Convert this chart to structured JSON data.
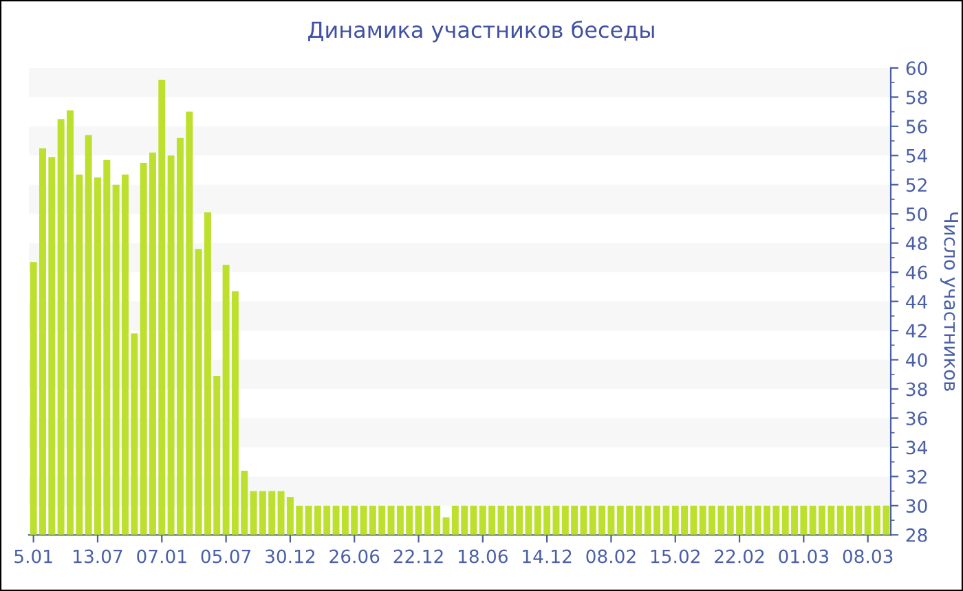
{
  "chart_data": {
    "type": "bar",
    "title": "Динамика участников беседы",
    "ylabel": "Число участников",
    "categories": [
      "5.01",
      null,
      null,
      null,
      null,
      null,
      null,
      "13.07",
      null,
      null,
      null,
      null,
      null,
      null,
      "07.01",
      null,
      null,
      null,
      null,
      null,
      null,
      "05.07",
      null,
      null,
      null,
      null,
      null,
      null,
      "30.12",
      null,
      null,
      null,
      null,
      null,
      null,
      "26.06",
      null,
      null,
      null,
      null,
      null,
      null,
      "22.12",
      null,
      null,
      null,
      null,
      null,
      null,
      "18.06",
      null,
      null,
      null,
      null,
      null,
      null,
      "14.12",
      null,
      null,
      null,
      null,
      null,
      null,
      "08.02",
      null,
      null,
      null,
      null,
      null,
      null,
      "15.02",
      null,
      null,
      null,
      null,
      null,
      null,
      "22.02",
      null,
      null,
      null,
      null,
      null,
      null,
      "01.03",
      null,
      null,
      null,
      null,
      null,
      null,
      "08.03",
      null,
      null
    ],
    "values": [
      46.7,
      54.5,
      53.9,
      56.5,
      57.1,
      52.7,
      55.4,
      52.5,
      53.7,
      52.0,
      52.7,
      41.8,
      53.5,
      54.2,
      59.2,
      54.0,
      55.2,
      57.0,
      47.6,
      50.1,
      38.9,
      46.5,
      44.7,
      32.4,
      31.0,
      31.0,
      31.0,
      31.0,
      30.6,
      30,
      30,
      30,
      30,
      30,
      30,
      30,
      30,
      30,
      30,
      30,
      30,
      30,
      30,
      30,
      30,
      29.2,
      30,
      30,
      30,
      30,
      30,
      30,
      30,
      30,
      30,
      30,
      30,
      30,
      30,
      30,
      30,
      30,
      30,
      30,
      30,
      30,
      30,
      30,
      30,
      30,
      30,
      30,
      30,
      30,
      30,
      30,
      30,
      30,
      30,
      30,
      30,
      30,
      30,
      30,
      30,
      30,
      30,
      30,
      30,
      30,
      30,
      30,
      30,
      30
    ],
    "color": "#bde02e",
    "ylim": [
      28,
      60
    ],
    "yticks": [
      28,
      30,
      32,
      34,
      36,
      38,
      40,
      42,
      44,
      46,
      48,
      50,
      52,
      54,
      56,
      58,
      60
    ]
  }
}
